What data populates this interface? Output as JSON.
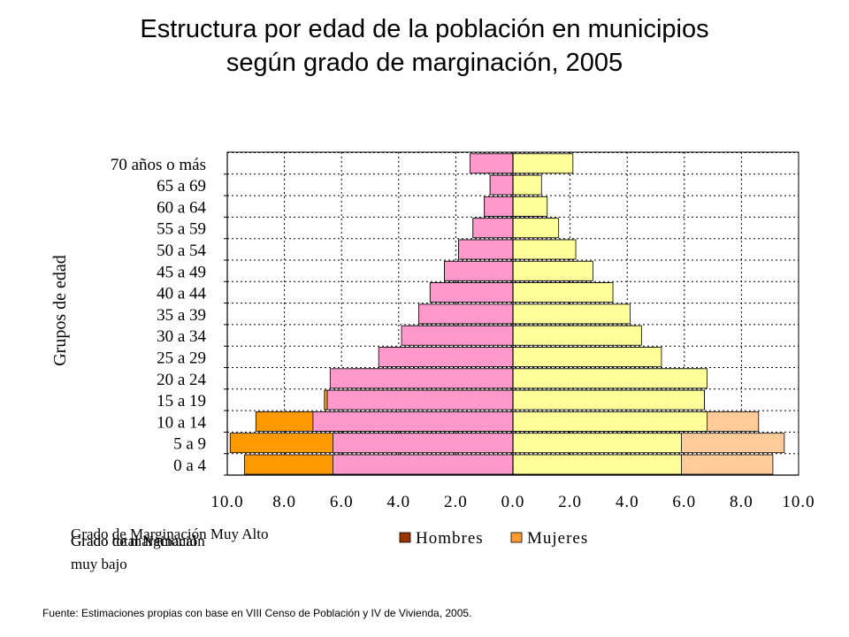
{
  "title_line1": "Estructura  por edad de la población en municipios",
  "title_line2": "según grado de marginación, 2005",
  "source_note": "Fuente: Estimaciones propias con base en VIII Censo de Población y IV de Vivienda, 2005.",
  "chart_data": {
    "type": "bar",
    "orientation": "horizontal",
    "ylabel": "Grupos de edad",
    "categories": [
      "0 a 4",
      "5 a 9",
      "10 a 14",
      "15 a 19",
      "20 a 24",
      "25 a 29",
      "30 a 34",
      "35 a 39",
      "40 a 44",
      "45 a 49",
      "50 a 54",
      "55 a 59",
      "60 a 64",
      "65 a 69",
      "70 años o más"
    ],
    "x_tick_labels": [
      "10.0",
      "8.0",
      "6.0",
      "4.0",
      "2.0",
      "0.0",
      "2.0",
      "4.0",
      "6.0",
      "8.0",
      "10.0"
    ],
    "xlim": [
      -10,
      10
    ],
    "grid": true,
    "legend_position": "bottom",
    "legend": [
      "Hombres",
      "Mujeres"
    ],
    "series": [
      {
        "name": "Grado de Marginación Muy Alto",
        "side": "left",
        "color": "#FF9900",
        "values": [
          9.4,
          9.9,
          9.0,
          6.6,
          5.6,
          4.5,
          3.7,
          3.3,
          2.9,
          2.4,
          1.9,
          1.4,
          1.0,
          0.8,
          1.1
        ]
      },
      {
        "name": "Grado de Marginación muy bajo",
        "side": "left",
        "color": "#FF99CC",
        "values": [
          6.3,
          6.3,
          7.0,
          6.5,
          6.4,
          4.7,
          3.9,
          3.3,
          2.9,
          2.4,
          1.9,
          1.4,
          1.0,
          0.8,
          1.5
        ]
      },
      {
        "name": "Grado de Marginación Muy Alto",
        "side": "right",
        "color": "#FFCC99",
        "values": [
          9.1,
          9.5,
          8.6,
          6.7,
          6.6,
          5.0,
          4.3,
          3.9,
          3.4,
          2.7,
          2.1,
          1.5,
          1.1,
          0.9,
          1.0
        ]
      },
      {
        "name": "Grado de Marginación muy bajo",
        "side": "right",
        "color": "#FFFF99",
        "values": [
          5.9,
          5.9,
          6.8,
          6.7,
          6.8,
          5.2,
          4.5,
          4.1,
          3.5,
          2.8,
          2.2,
          1.6,
          1.2,
          1.0,
          2.1
        ]
      }
    ],
    "overlapping_labels": [
      "Grado de Marginación Muy Alto",
      "Grado de marginación",
      "Grado total Nacional",
      "muy bajo"
    ],
    "legend_colors": {
      "Hombres": "#993300",
      "Mujeres": "#FF9933"
    }
  }
}
